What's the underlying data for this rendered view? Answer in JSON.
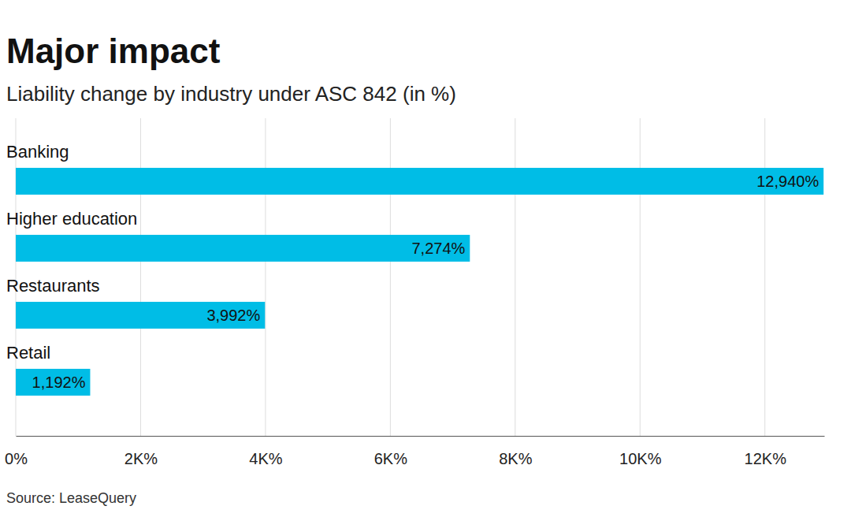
{
  "chart_data": {
    "type": "bar",
    "orientation": "horizontal",
    "title": "Major impact",
    "subtitle": "Liability change by industry under ASC 842 (in %)",
    "source": "Source: LeaseQuery",
    "categories": [
      "Banking",
      "Higher education",
      "Restaurants",
      "Retail"
    ],
    "values": [
      12940,
      7274,
      3992,
      1192
    ],
    "value_labels": [
      "12,940%",
      "7,274%",
      "3,992%",
      "1,192%"
    ],
    "color": "#00bde6",
    "xlim": [
      0,
      12950
    ],
    "xticks": [
      {
        "value": 0,
        "label": "0%"
      },
      {
        "value": 2000,
        "label": "2K%"
      },
      {
        "value": 4000,
        "label": "4K%"
      },
      {
        "value": 6000,
        "label": "6K%"
      },
      {
        "value": 8000,
        "label": "8K%"
      },
      {
        "value": 10000,
        "label": "10K%"
      },
      {
        "value": 12000,
        "label": "12K%"
      }
    ],
    "grid": true,
    "data_labels": true
  }
}
